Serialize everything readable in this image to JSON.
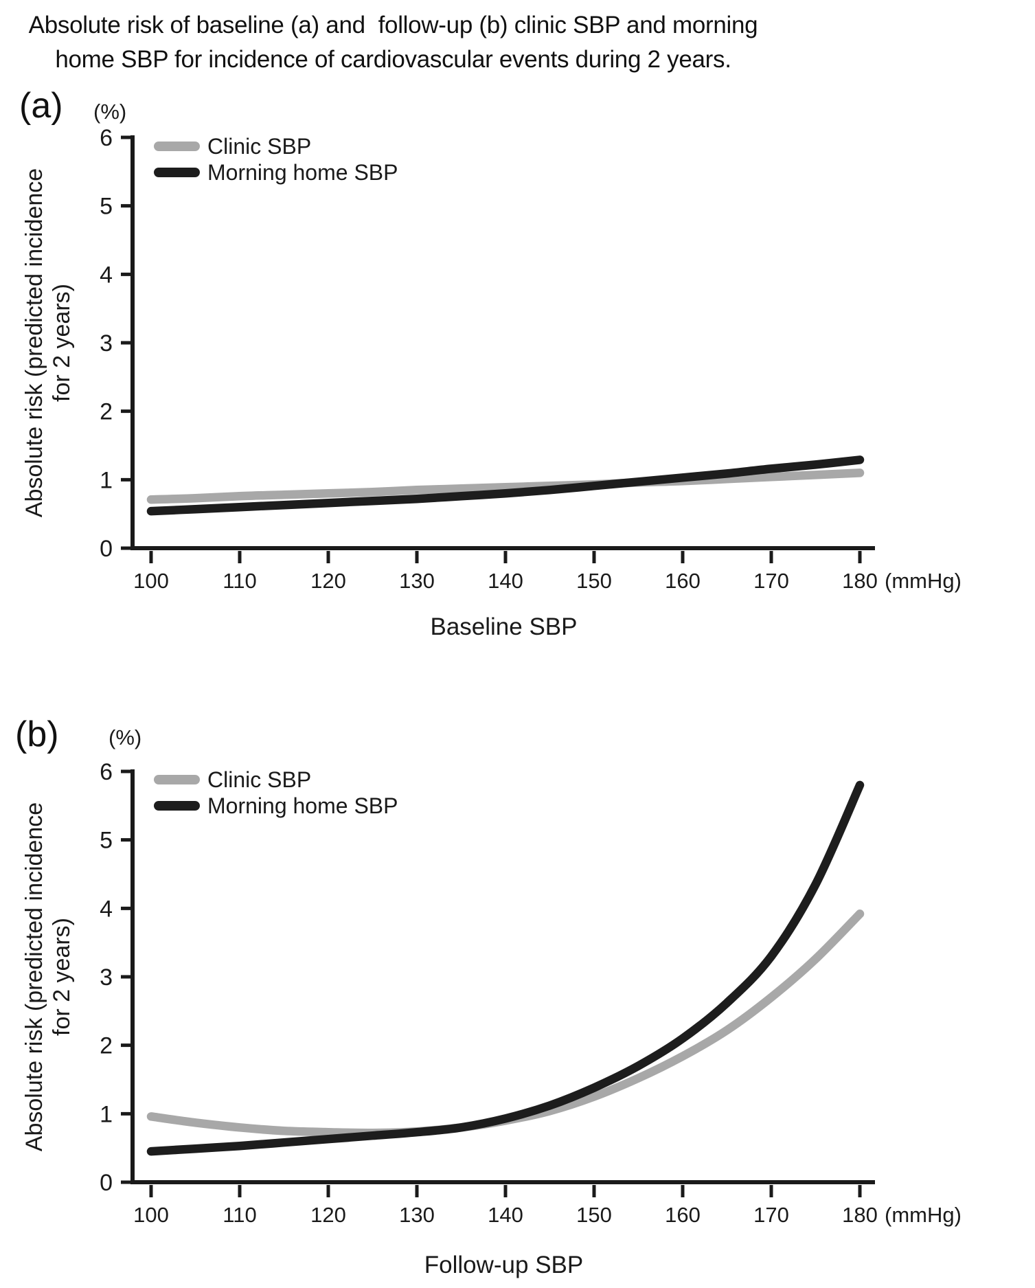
{
  "figure": {
    "title_line1": "Absolute risk of baseline (a) and  follow-up (b) clinic SBP and morning",
    "title_line2": "home SBP for incidence of cardiovascular events during 2 years."
  },
  "colors": {
    "clinic_sbp": "#a8a8a8",
    "morning_home_sbp": "#1d1d1d",
    "axis": "#1a1a1a"
  },
  "chart_data": [
    {
      "type": "line",
      "panel_label": "(a)",
      "y_unit_label": "(%)",
      "x_unit_label": "(mmHg)",
      "xlabel": "Baseline SBP",
      "ylabel_line1": "Absolute risk (predicted incidence",
      "ylabel_line2": "for 2 years)",
      "xlim": [
        100,
        180
      ],
      "ylim": [
        0,
        6
      ],
      "xticks": [
        100,
        110,
        120,
        130,
        140,
        150,
        160,
        170,
        180
      ],
      "yticks": [
        0,
        1,
        2,
        3,
        4,
        5,
        6
      ],
      "grid": false,
      "legend_position": "top-left",
      "x": [
        100,
        105,
        110,
        115,
        120,
        125,
        130,
        135,
        140,
        145,
        150,
        155,
        160,
        165,
        170,
        175,
        180
      ],
      "series": [
        {
          "name": "Clinic SBP",
          "color": "#a8a8a8",
          "values": [
            0.71,
            0.73,
            0.76,
            0.78,
            0.8,
            0.82,
            0.85,
            0.87,
            0.89,
            0.91,
            0.93,
            0.96,
            0.98,
            1.01,
            1.04,
            1.07,
            1.1
          ]
        },
        {
          "name": "Morning home SBP",
          "color": "#1d1d1d",
          "values": [
            0.54,
            0.57,
            0.6,
            0.63,
            0.66,
            0.69,
            0.72,
            0.76,
            0.8,
            0.85,
            0.91,
            0.97,
            1.03,
            1.09,
            1.16,
            1.22,
            1.29
          ]
        }
      ]
    },
    {
      "type": "line",
      "panel_label": "(b)",
      "y_unit_label": "(%)",
      "x_unit_label": "(mmHg)",
      "xlabel": "Follow-up SBP",
      "ylabel_line1": "Absolute risk (predicted incidence",
      "ylabel_line2": "for 2 years)",
      "xlim": [
        100,
        180
      ],
      "ylim": [
        0,
        6
      ],
      "xticks": [
        100,
        110,
        120,
        130,
        140,
        150,
        160,
        170,
        180
      ],
      "yticks": [
        0,
        1,
        2,
        3,
        4,
        5,
        6
      ],
      "grid": false,
      "legend_position": "top-left",
      "x": [
        100,
        105,
        110,
        115,
        120,
        125,
        130,
        135,
        140,
        145,
        150,
        155,
        160,
        165,
        170,
        175,
        180
      ],
      "series": [
        {
          "name": "Clinic SBP",
          "color": "#a8a8a8",
          "values": [
            0.96,
            0.87,
            0.8,
            0.75,
            0.73,
            0.72,
            0.74,
            0.8,
            0.9,
            1.04,
            1.25,
            1.52,
            1.84,
            2.22,
            2.7,
            3.26,
            3.92
          ]
        },
        {
          "name": "Morning home SBP",
          "color": "#1d1d1d",
          "values": [
            0.45,
            0.49,
            0.53,
            0.58,
            0.63,
            0.68,
            0.73,
            0.8,
            0.93,
            1.12,
            1.38,
            1.7,
            2.1,
            2.62,
            3.3,
            4.35,
            5.8
          ]
        }
      ]
    }
  ]
}
